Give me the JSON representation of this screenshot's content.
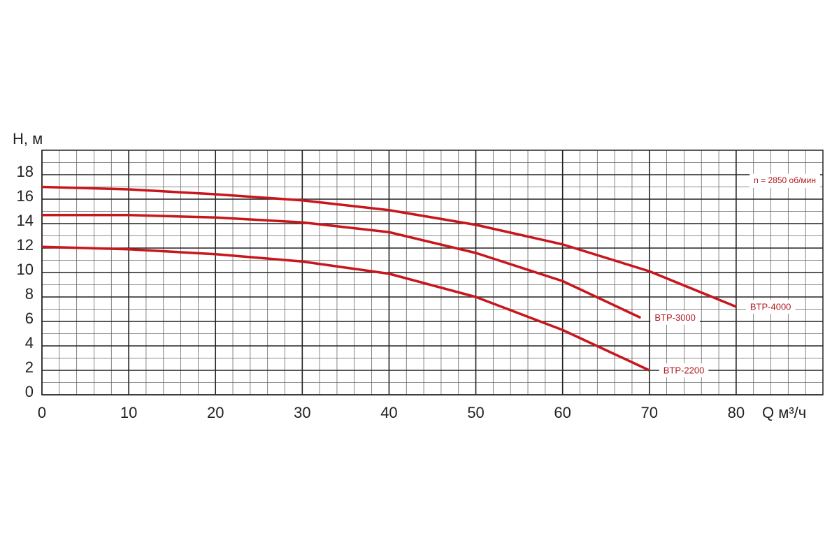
{
  "chart_data": {
    "type": "line",
    "y_label": "H, м",
    "x_label": "Q м³/ч",
    "annotation": "n = 2850 об/мин",
    "xlim": [
      0,
      90
    ],
    "xticks": [
      0,
      10,
      20,
      30,
      40,
      50,
      60,
      70,
      80
    ],
    "ylim": [
      0,
      20
    ],
    "yticks": [
      0,
      2,
      4,
      6,
      8,
      10,
      12,
      14,
      16,
      18
    ],
    "grid": true,
    "series": [
      {
        "name": "BTP-4000",
        "color": "#c8161d",
        "x": [
          0,
          10,
          20,
          30,
          40,
          50,
          60,
          70,
          80
        ],
        "values": [
          17,
          16.8,
          16.4,
          15.9,
          15.1,
          13.9,
          12.3,
          10.1,
          7.2
        ]
      },
      {
        "name": "BTP-3000",
        "color": "#c8161d",
        "x": [
          0,
          10,
          20,
          30,
          40,
          50,
          60,
          69
        ],
        "values": [
          14.7,
          14.7,
          14.5,
          14.1,
          13.3,
          11.6,
          9.3,
          6.3
        ]
      },
      {
        "name": "BTP-2200",
        "color": "#c8161d",
        "x": [
          0,
          10,
          20,
          30,
          40,
          50,
          60,
          70
        ],
        "values": [
          12.1,
          11.9,
          11.5,
          10.9,
          9.9,
          8.0,
          5.3,
          2.0
        ]
      }
    ]
  }
}
